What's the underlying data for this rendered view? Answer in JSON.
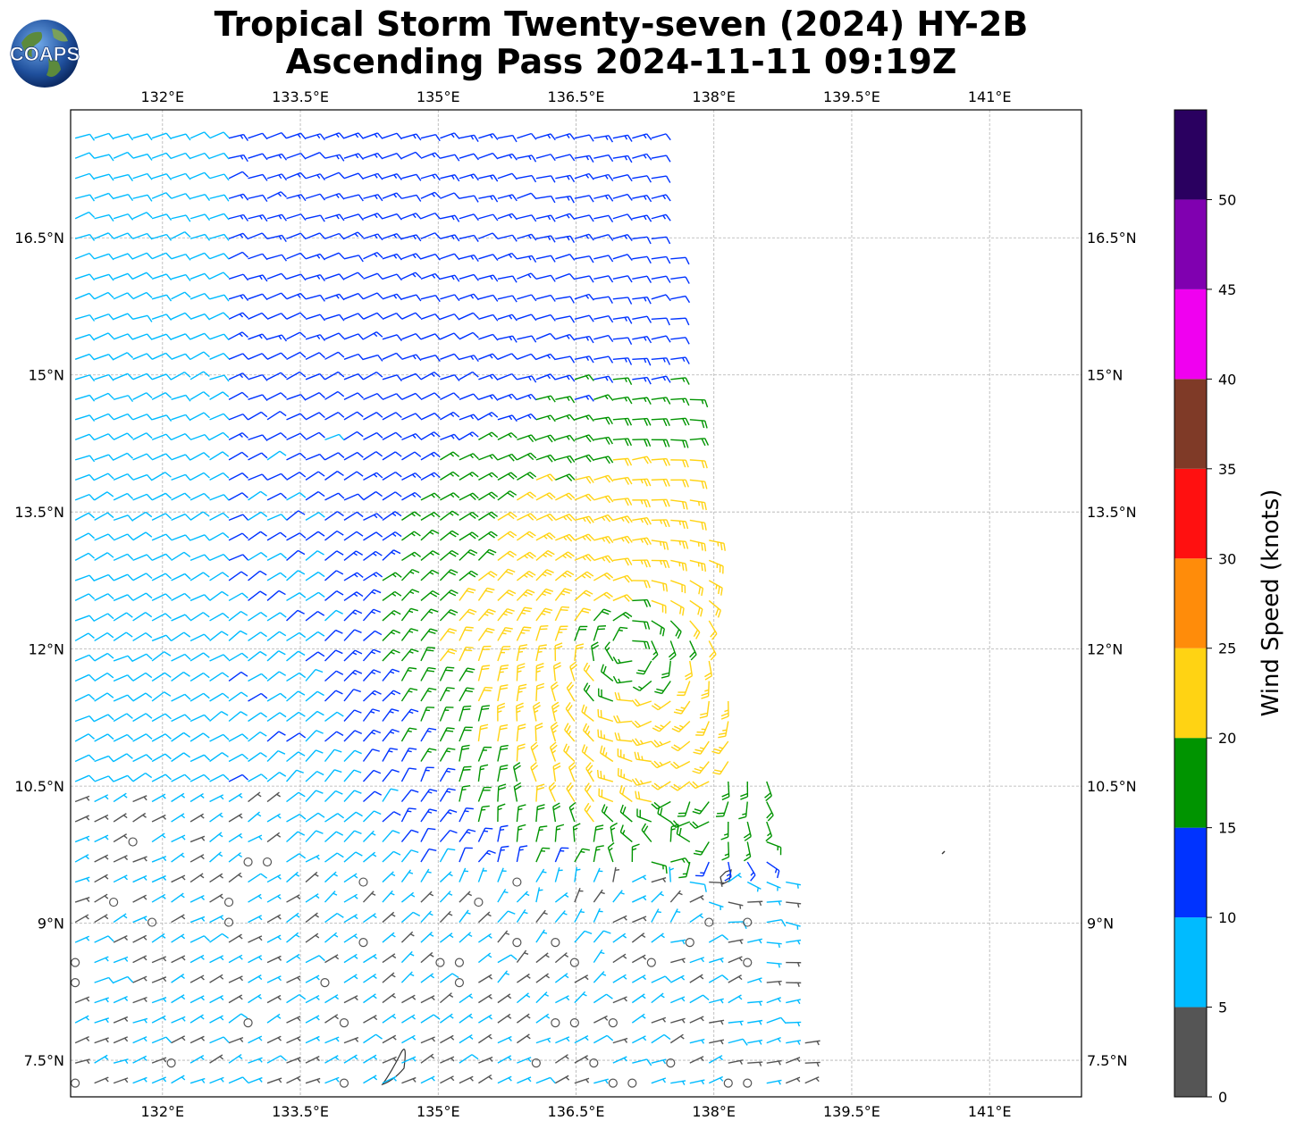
{
  "title": {
    "line1": "Tropical Storm Twenty-seven (2024) HY-2B",
    "line2": "Ascending Pass 2024-11-11 09:19Z"
  },
  "logo": {
    "text": "COAPS",
    "icon": "globe-logo-icon"
  },
  "map": {
    "lon_range": [
      131,
      142
    ],
    "lat_range": [
      7.1,
      17.9
    ],
    "lon_ticks": [
      "132°E",
      "133.5°E",
      "135°E",
      "136.5°E",
      "138°E",
      "139.5°E",
      "141°E"
    ],
    "lat_ticks": [
      "16.5°N",
      "15°N",
      "13.5°N",
      "12°N",
      "10.5°N",
      "9°N",
      "7.5°N"
    ],
    "grid": "dashed gray",
    "storm_center": {
      "lon": 137.1,
      "lat": 12.0
    }
  },
  "colorbar": {
    "label": "Wind Speed (knots)",
    "ticks": [
      "0",
      "5",
      "10",
      "15",
      "20",
      "25",
      "30",
      "35",
      "40",
      "45",
      "50"
    ],
    "range": [
      0,
      55
    ],
    "bins": [
      {
        "from": 0,
        "to": 5,
        "color": "#555555"
      },
      {
        "from": 5,
        "to": 10,
        "color": "#00bbff"
      },
      {
        "from": 10,
        "to": 15,
        "color": "#0033ff"
      },
      {
        "from": 15,
        "to": 20,
        "color": "#009400"
      },
      {
        "from": 20,
        "to": 25,
        "color": "#ffd313"
      },
      {
        "from": 25,
        "to": 30,
        "color": "#ff8c0a"
      },
      {
        "from": 30,
        "to": 35,
        "color": "#ff1010"
      },
      {
        "from": 35,
        "to": 40,
        "color": "#7f3a27"
      },
      {
        "from": 40,
        "to": 45,
        "color": "#f000f0"
      },
      {
        "from": 45,
        "to": 50,
        "color": "#8000b0"
      },
      {
        "from": 50,
        "to": 55,
        "color": "#2a0060"
      }
    ]
  }
}
